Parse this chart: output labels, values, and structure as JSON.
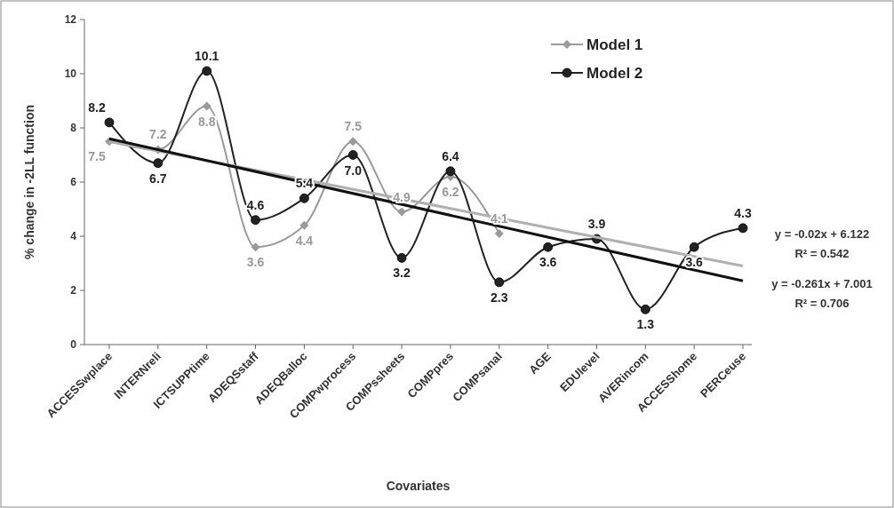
{
  "chart_data": {
    "type": "line",
    "xlabel": "Covariates",
    "ylabel": "% change in -2LL function",
    "categories": [
      "ACCESSwplace",
      "INTERNreli",
      "ICTSUPPtime",
      "ADEQSstaff",
      "ADEQBalloc",
      "COMPwprocess",
      "COMPssheets",
      "COMPpres",
      "COMPsanal",
      "AGE",
      "EDUlevel",
      "AVERincom",
      "ACCESShome",
      "PERCeuse"
    ],
    "ylim": [
      0,
      12
    ],
    "yticks": [
      0,
      2,
      4,
      6,
      8,
      10,
      12
    ],
    "legend": "top right",
    "series": [
      {
        "name": "Model 1",
        "color": "#9a9a9a",
        "marker": "diamond",
        "values": [
          7.5,
          7.2,
          8.8,
          3.6,
          4.4,
          7.5,
          4.9,
          6.2,
          4.1,
          null,
          null,
          null,
          null,
          null
        ],
        "value_labels": [
          "7.5",
          "7.2",
          "8.8",
          "3.6",
          "4.4",
          "7.5",
          "4.9",
          "6.2",
          "4.1",
          null,
          null,
          null,
          null,
          null
        ]
      },
      {
        "name": "Model 2",
        "color": "#222222",
        "marker": "circle",
        "values": [
          8.2,
          6.7,
          10.1,
          4.6,
          5.4,
          7.0,
          3.2,
          6.4,
          2.3,
          3.6,
          3.9,
          1.3,
          3.6,
          4.3
        ],
        "value_labels": [
          "8.2",
          "6.7",
          "10.1",
          "4.6",
          "5.4",
          "7.0",
          "3.2",
          "6.4",
          "2.3",
          "3.6",
          "3.9",
          "1.3",
          "3.6",
          "4.3"
        ]
      },
      {
        "color": "#b0b0b0",
        "marker": "none",
        "values": [
          7.5,
          null,
          null,
          null,
          null,
          null,
          null,
          null,
          null,
          null,
          null,
          null,
          null,
          2.9
        ]
      },
      {
        "color": "#111111",
        "marker": "none",
        "values": [
          7.6,
          null,
          null,
          null,
          null,
          null,
          null,
          null,
          null,
          null,
          null,
          null,
          null,
          2.35
        ]
      }
    ],
    "annotations": [
      "y = -0.02x + 6.122",
      "R² = 0.542",
      "y = -0.261x + 7.001",
      "R² = 0.706"
    ]
  }
}
